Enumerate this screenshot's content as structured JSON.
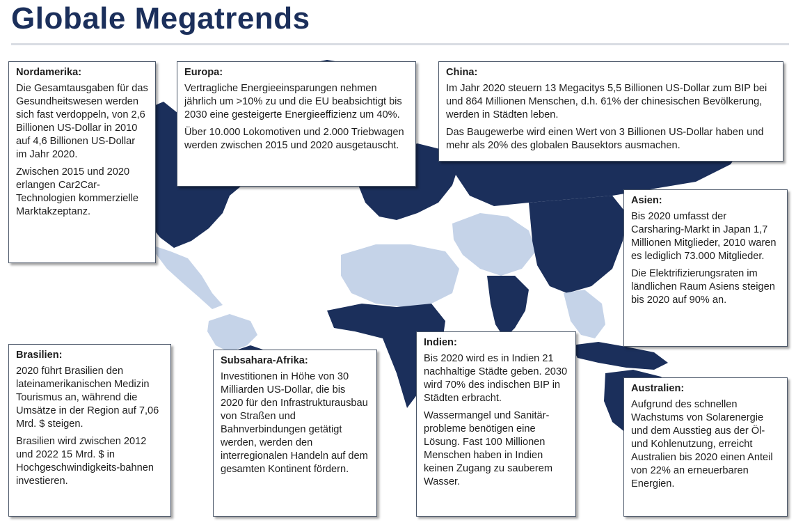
{
  "title": "Globale Megatrends",
  "colors": {
    "primary": "#1b2f5b",
    "light": "#c5d3e8"
  },
  "regions": {
    "nordamerika": {
      "heading": "Nordamerika:",
      "p1": "Die Gesamtausgaben für das Gesundheitswesen werden sich fast verdoppeln, von 2,6 Billionen US-Dollar in 2010 auf 4,6 Billionen US-Dollar im Jahr 2020.",
      "p2": "Zwischen 2015 und 2020 erlangen Car2Car-Technologien kommerzielle Marktakzeptanz."
    },
    "europa": {
      "heading": "Europa:",
      "p1": "Vertragliche Energieeinsparungen nehmen jährlich um >10% zu und die EU beabsichtigt bis 2030 eine gesteigerte Energieeffizienz um 40%.",
      "p2": "Über 10.000 Lokomotiven und 2.000 Triebwagen werden zwischen 2015 und 2020 ausgetauscht."
    },
    "china": {
      "heading": "China:",
      "p1": "Im Jahr 2020 steuern 13 Megacitys 5,5 Billionen US-Dollar zum BIP bei und 864 Millionen Menschen, d.h. 61% der chinesischen Bevölkerung, werden in Städten leben.",
      "p2": "Das Baugewerbe wird einen Wert von 3 Billionen US-Dollar haben und mehr als 20% des globalen Bausektors ausmachen."
    },
    "asien": {
      "heading": "Asien:",
      "p1": "Bis 2020 umfasst der Carsharing-Markt in Japan 1,7 Millionen Mitglieder, 2010 waren es lediglich 73.000 Mitglieder.",
      "p2": "Die Elektrifizierungsraten im ländlichen Raum Asiens steigen bis 2020 auf 90% an."
    },
    "brasilien": {
      "heading": "Brasilien:",
      "p1": "2020 führt Brasilien den lateinamerikanischen Medizin Tourismus an, während die Umsätze in der Region auf 7,06 Mrd. $ steigen.",
      "p2": "Brasilien wird zwischen 2012 und 2022 15 Mrd. $ in Hochgeschwindigkeits-bahnen investieren."
    },
    "subsahara": {
      "heading": "Subsahara-Afrika:",
      "p1": "Investitionen in Höhe von 30 Milliarden US-Dollar, die bis 2020 für den Infrastrukturausbau von Straßen und Bahnverbindungen getätigt werden, werden den interregionalen Handeln auf dem gesamten Kontinent fördern."
    },
    "indien": {
      "heading": "Indien:",
      "p1": "Bis 2020 wird es in Indien 21 nachhaltige Städte geben. 2030 wird 70% des indischen BIP in Städten erbracht.",
      "p2": "Wassermangel und Sanitär-probleme benötigen eine Lösung. Fast 100 Millionen Menschen haben in Indien keinen Zugang zu sauberem Wasser."
    },
    "australien": {
      "heading": "Australien:",
      "p1": "Aufgrund des schnellen Wachstums von Solarenergie und dem Ausstieg aus der Öl- und Kohlenutzung, erreicht Australien bis 2020 einen Anteil von 22% an erneuerbaren Energien."
    }
  }
}
